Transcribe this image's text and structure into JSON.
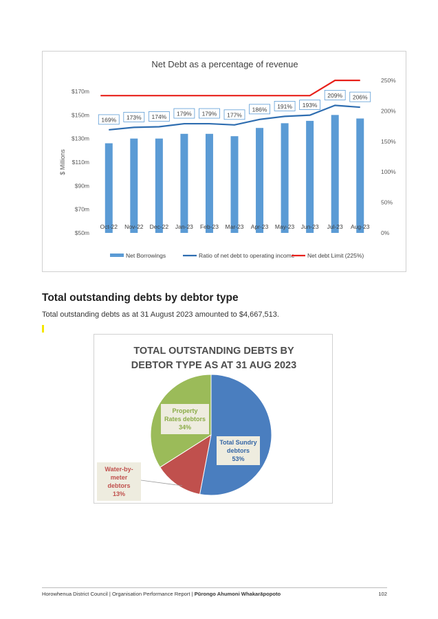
{
  "chart1": {
    "title": "Net Debt as a percentage of revenue",
    "ylabel": "$ Millions"
  },
  "chart_data": [
    {
      "type": "bar",
      "title": "Net Debt as a percentage of revenue",
      "ylabel": "$ Millions",
      "categories": [
        "Oct-22",
        "Nov-22",
        "Dec-22",
        "Jan-23",
        "Feb-23",
        "Mar-23",
        "Apr-23",
        "May-23",
        "Jun-23",
        "Jul-23",
        "Aug-23"
      ],
      "ylim": [
        50,
        170
      ],
      "y_ticks": [
        "$50m",
        "$70m",
        "$90m",
        "$110m",
        "$130m",
        "$150m",
        "$170m"
      ],
      "y2lim": [
        0,
        250
      ],
      "y2_ticks": [
        "0%",
        "50%",
        "100%",
        "150%",
        "200%",
        "250%"
      ],
      "grid": false,
      "legend": "bottom",
      "series": [
        {
          "name": "Net Borrowings",
          "type": "bar",
          "axis": "left",
          "color": "#5b9bd5",
          "values": [
            126,
            130,
            130,
            134,
            134,
            132,
            139,
            143,
            145,
            150,
            147
          ]
        },
        {
          "name": "Ratio of net debt to operating income",
          "type": "line",
          "axis": "right",
          "color": "#2e6db0",
          "values": [
            169,
            173,
            174,
            179,
            179,
            177,
            186,
            191,
            193,
            209,
            206
          ],
          "labels": [
            "169%",
            "173%",
            "174%",
            "179%",
            "179%",
            "177%",
            "186%",
            "191%",
            "193%",
            "209%",
            "206%"
          ]
        },
        {
          "name": "Net debt Limit (225%)",
          "type": "line",
          "axis": "right",
          "color": "#e8201a",
          "values": [
            225,
            225,
            225,
            225,
            225,
            225,
            225,
            225,
            225,
            250,
            250
          ]
        }
      ]
    },
    {
      "type": "pie",
      "title": "TOTAL OUTSTANDING DEBTS BY DEBTOR TYPE AS AT 31 AUG 2023",
      "title_lines": [
        "TOTAL OUTSTANDING DEBTS BY",
        "DEBTOR TYPE AS AT 31 AUG 2023"
      ],
      "slices": [
        {
          "name": "Total Sundry debtors",
          "value": 53,
          "label": "53%",
          "color": "#4a7ebf",
          "label_lines": [
            "Total Sundry",
            "debtors",
            "53%"
          ],
          "text_color": "#3465a4"
        },
        {
          "name": "Water-by-meter debtors",
          "value": 13,
          "label": "13%",
          "color": "#c0504d",
          "label_lines": [
            "Water-by-",
            "meter",
            "debtors",
            "13%"
          ],
          "text_color": "#c0504d"
        },
        {
          "name": "Property Rates debtors",
          "value": 34,
          "label": "34%",
          "color": "#9bbb59",
          "label_lines": [
            "Property",
            "Rates debtors",
            "34%"
          ],
          "text_color": "#8aab46"
        }
      ]
    }
  ],
  "section": {
    "heading": "Total outstanding debts by debtor type",
    "text": "Total outstanding debts as at 31 August 2023 amounted to $4,667,513."
  },
  "footer": {
    "org": "Horowhenua District Council | Organisation Performance Report | ",
    "maori_title": "Pūrongo Ahumoni Whakarāpopoto",
    "page": "102"
  }
}
